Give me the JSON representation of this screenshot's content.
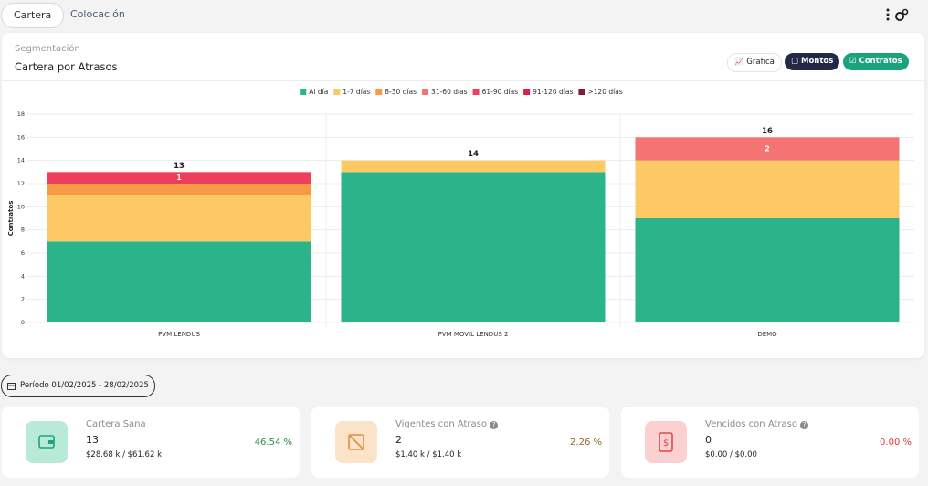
{
  "tabs": [
    "Cartera",
    "Colocación"
  ],
  "panel": {
    "subtitle": "Segmentación",
    "title": "Cartera por Atrasos",
    "buttons": [
      "Grafica",
      "Montos",
      "Contratos"
    ]
  },
  "chart_data": {
    "type": "stacked_bar",
    "ylabel": "Contratos",
    "categories": [
      "PVM LENDUS",
      "PVM MOVIL LENDUS 2",
      "DEMO"
    ],
    "series": [
      {
        "name": "Al día",
        "color": "#2bb38a",
        "values": [
          7,
          13,
          9
        ]
      },
      {
        "name": "1-7 días",
        "color": "#fcc965",
        "values": [
          4,
          1,
          5
        ]
      },
      {
        "name": "8-30 días",
        "color": "#f79a45",
        "values": [
          1,
          0,
          0
        ]
      },
      {
        "name": "31-60 días",
        "color": "#f47373",
        "values": [
          0,
          0,
          2
        ],
        "show_labels": true
      },
      {
        "name": "61-90 días",
        "color": "#ef3e5c",
        "values": [
          1,
          0,
          0
        ],
        "show_labels": true
      },
      {
        "name": "91-120 días",
        "color": "#e11d48",
        "values": [
          0,
          0,
          0
        ]
      },
      {
        "name": ">120 días",
        "color": "#831843",
        "values": [
          0,
          0,
          0
        ]
      }
    ],
    "totals": [
      13,
      14,
      16
    ],
    "ylim": [
      0,
      18
    ],
    "yticks": [
      0,
      2,
      4,
      6,
      8,
      10,
      12,
      14,
      16,
      18
    ],
    "grid": true,
    "legend": "top"
  },
  "period": {
    "label": "Período",
    "range": "01/02/2025 - 28/02/2025"
  },
  "summary": [
    {
      "title": "Cartera Sana",
      "value": "13",
      "amounts": "$28.68 k / $61.62 k",
      "percent": "46.54 %"
    },
    {
      "title": "Vigentes con Atraso",
      "value": "2",
      "amounts": "$1.40 k / $1.40 k",
      "percent": "2.26 %"
    },
    {
      "title": "Vencidos con Atraso",
      "value": "0",
      "amounts": "$0.00 / $0.00",
      "percent": "0.00 %"
    }
  ]
}
